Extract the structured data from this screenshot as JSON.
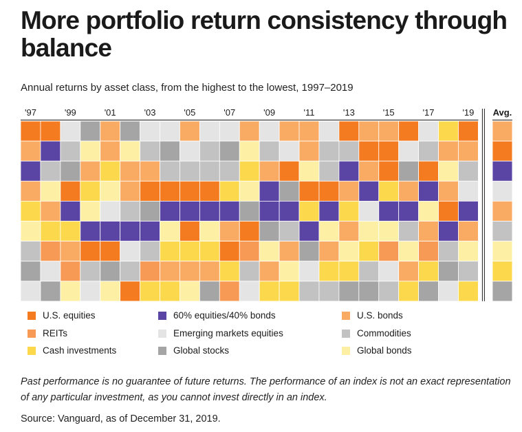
{
  "title": "More portfolio return consistency through balance",
  "subtitle": "Annual returns by asset class, from the highest to the lowest, 1997–2019",
  "note": "Past performance is no guarantee of future returns. The performance of an index is not an exact representation of any particular investment, as you cannot invest directly in an index.",
  "source": "Source: Vanguard, as of December 31, 2019.",
  "colors": {
    "us_equities": "#f47b20",
    "reits": "#f79a55",
    "cash": "#fcd94c",
    "balanced": "#5a45a5",
    "em_equities": "#e4e4e4",
    "global_stocks": "#a5a5a5",
    "us_bonds": "#f9ab63",
    "commodities": "#c2c2c2",
    "global_bonds": "#fdf0a4"
  },
  "legend": [
    {
      "key": "us_equities",
      "label": "U.S. equities"
    },
    {
      "key": "reits",
      "label": "REITs"
    },
    {
      "key": "cash",
      "label": "Cash investments"
    },
    {
      "key": "balanced",
      "label": "60% equities/40% bonds"
    },
    {
      "key": "em_equities",
      "label": "Emerging markets equities"
    },
    {
      "key": "global_stocks",
      "label": "Global stocks"
    },
    {
      "key": "us_bonds",
      "label": "U.S. bonds"
    },
    {
      "key": "commodities",
      "label": "Commodities"
    },
    {
      "key": "global_bonds",
      "label": "Global bonds"
    }
  ],
  "chart_data": {
    "type": "heatmap",
    "x_tick_labels": [
      "'97",
      "'99",
      "'01",
      "'03",
      "'05",
      "'07",
      "'09",
      "'11",
      "'13",
      "'15",
      "'17",
      "'19"
    ],
    "avg_label": "Avg.",
    "years": [
      1997,
      1998,
      1999,
      2000,
      2001,
      2002,
      2003,
      2004,
      2005,
      2006,
      2007,
      2008,
      2009,
      2010,
      2011,
      2012,
      2013,
      2014,
      2015,
      2016,
      2017,
      2018,
      2019
    ],
    "rank_order": "highest to lowest",
    "columns": [
      [
        "us_equities",
        "us_bonds",
        "balanced",
        "us_bonds",
        "cash",
        "global_bonds",
        "commodities",
        "global_stocks",
        "em_equities"
      ],
      [
        "us_equities",
        "balanced",
        "commodities",
        "global_bonds",
        "us_bonds",
        "cash",
        "reits",
        "em_equities",
        "global_stocks"
      ],
      [
        "em_equities",
        "commodities",
        "global_stocks",
        "us_equities",
        "balanced",
        "cash",
        "us_bonds",
        "reits",
        "global_bonds"
      ],
      [
        "global_stocks",
        "global_bonds",
        "us_bonds",
        "cash",
        "global_bonds",
        "balanced",
        "us_equities",
        "commodities",
        "em_equities"
      ],
      [
        "us_bonds",
        "us_bonds",
        "cash",
        "global_bonds",
        "em_equities",
        "balanced",
        "us_equities",
        "global_stocks",
        "global_bonds"
      ],
      [
        "global_stocks",
        "global_bonds",
        "us_bonds",
        "us_bonds",
        "commodities",
        "balanced",
        "em_equities",
        "commodities",
        "us_equities"
      ],
      [
        "em_equities",
        "commodities",
        "us_bonds",
        "us_equities",
        "global_stocks",
        "balanced",
        "commodities",
        "reits",
        "cash"
      ],
      [
        "em_equities",
        "global_stocks",
        "commodities",
        "us_equities",
        "balanced",
        "global_bonds",
        "cash",
        "us_bonds",
        "cash"
      ],
      [
        "us_bonds",
        "em_equities",
        "commodities",
        "us_equities",
        "balanced",
        "us_equities",
        "cash",
        "us_bonds",
        "global_bonds"
      ],
      [
        "em_equities",
        "commodities",
        "commodities",
        "us_equities",
        "balanced",
        "global_bonds",
        "cash",
        "us_bonds",
        "global_stocks"
      ],
      [
        "em_equities",
        "global_stocks",
        "commodities",
        "cash",
        "balanced",
        "us_bonds",
        "us_equities",
        "cash",
        "reits"
      ],
      [
        "us_bonds",
        "global_bonds",
        "cash",
        "global_bonds",
        "global_stocks",
        "us_equities",
        "reits",
        "commodities",
        "em_equities"
      ],
      [
        "em_equities",
        "commodities",
        "us_bonds",
        "balanced",
        "balanced",
        "global_stocks",
        "global_bonds",
        "us_bonds",
        "cash"
      ],
      [
        "us_bonds",
        "em_equities",
        "us_equities",
        "global_stocks",
        "balanced",
        "commodities",
        "us_bonds",
        "global_bonds",
        "cash"
      ],
      [
        "us_bonds",
        "us_bonds",
        "global_bonds",
        "us_equities",
        "cash",
        "balanced",
        "global_stocks",
        "em_equities",
        "commodities"
      ],
      [
        "em_equities",
        "commodities",
        "commodities",
        "us_equities",
        "balanced",
        "global_bonds",
        "us_bonds",
        "cash",
        "commodities"
      ],
      [
        "us_equities",
        "commodities",
        "balanced",
        "us_bonds",
        "cash",
        "us_bonds",
        "global_bonds",
        "cash",
        "global_stocks"
      ],
      [
        "us_bonds",
        "us_equities",
        "us_bonds",
        "balanced",
        "em_equities",
        "global_bonds",
        "cash",
        "commodities",
        "global_stocks"
      ],
      [
        "us_bonds",
        "us_equities",
        "us_equities",
        "cash",
        "balanced",
        "global_bonds",
        "reits",
        "em_equities",
        "commodities"
      ],
      [
        "us_equities",
        "em_equities",
        "global_stocks",
        "us_bonds",
        "balanced",
        "commodities",
        "global_bonds",
        "us_bonds",
        "cash"
      ],
      [
        "em_equities",
        "commodities",
        "us_equities",
        "balanced",
        "global_bonds",
        "us_bonds",
        "reits",
        "cash",
        "global_stocks"
      ],
      [
        "cash",
        "us_bonds",
        "global_bonds",
        "us_bonds",
        "us_equities",
        "balanced",
        "commodities",
        "global_stocks",
        "em_equities"
      ],
      [
        "us_equities",
        "us_bonds",
        "commodities",
        "em_equities",
        "balanced",
        "us_bonds",
        "global_bonds",
        "commodities",
        "cash"
      ]
    ],
    "average_column": [
      "us_bonds",
      "us_equities",
      "balanced",
      "em_equities",
      "us_bonds",
      "commodities",
      "global_bonds",
      "cash",
      "global_stocks"
    ]
  }
}
